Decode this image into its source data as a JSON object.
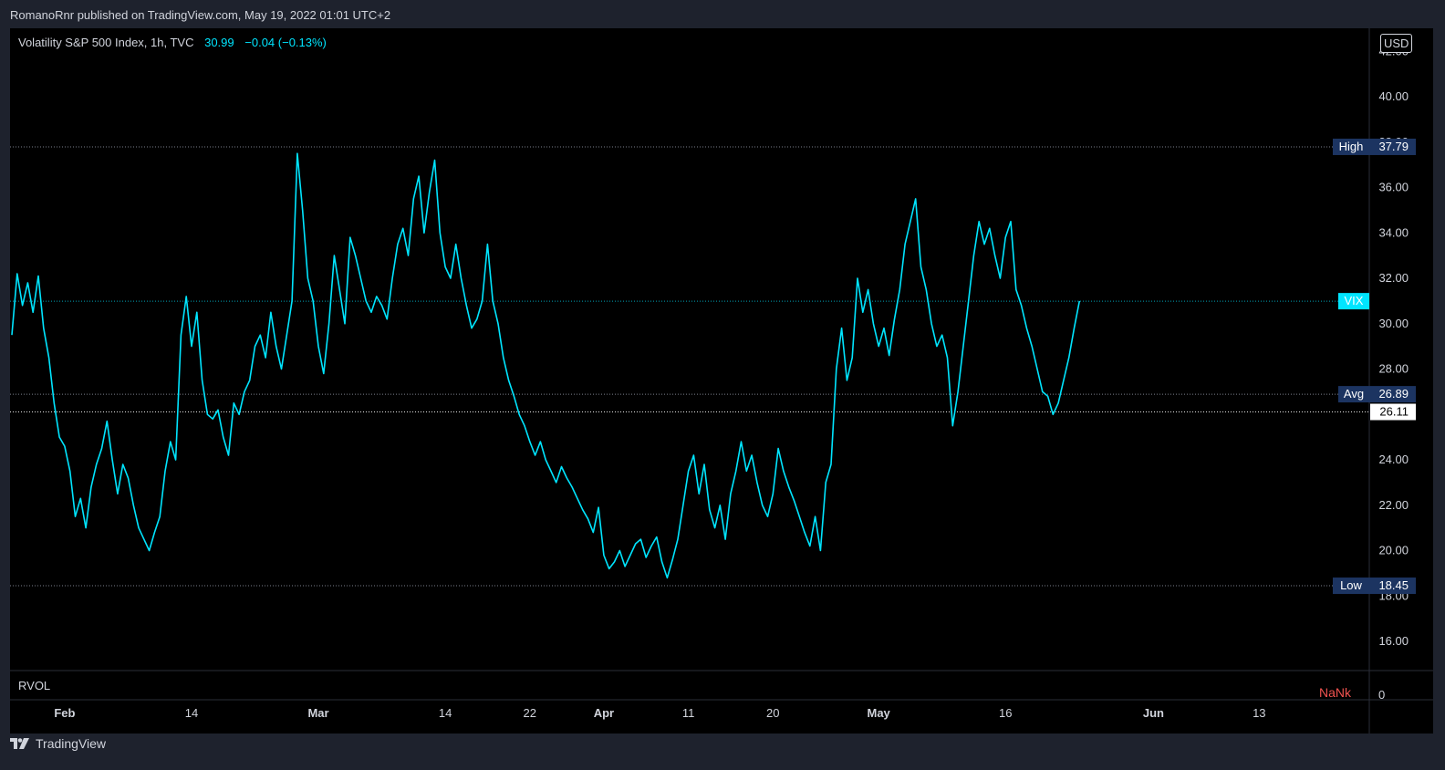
{
  "publisher_text": "RomanoRnr published on TradingView.com, May 19, 2022 01:01 UTC+2",
  "legend": {
    "symbol": "Volatility S&P 500 Index, 1h, TVC",
    "last": "30.99",
    "change": "−0.04 (−0.13%)"
  },
  "currency": "USD",
  "rvol": {
    "label": "RVOL",
    "value": "NaNk",
    "axis_zero": "0"
  },
  "footer": {
    "brand": "TradingView",
    "logo_icon": "tradingview-logo-icon"
  },
  "colors": {
    "series": "#00e5ff",
    "background": "#000000",
    "frame": "#1e222d",
    "hl_badge": "#1c3461",
    "rvol_value": "#f05350"
  },
  "chart_data": {
    "type": "line",
    "title": "Volatility S&P 500 Index, 1h, TVC",
    "ylim": [
      15,
      42
    ],
    "y_ticks": [
      16,
      18,
      20,
      22,
      24,
      26,
      28,
      30,
      32,
      34,
      36,
      38,
      40,
      42
    ],
    "y_tick_labels": [
      "16.00",
      "18.00",
      "20.00",
      "22.00",
      "24.00",
      "26.00",
      "28.00",
      "30.00",
      "32.00",
      "34.00",
      "36.00",
      "38.00",
      "40.00",
      "42.00"
    ],
    "x_ticks": [
      {
        "label": "Feb",
        "bold": true,
        "t": 5
      },
      {
        "label": "14",
        "bold": false,
        "t": 17
      },
      {
        "label": "Mar",
        "bold": true,
        "t": 29
      },
      {
        "label": "14",
        "bold": false,
        "t": 41
      },
      {
        "label": "22",
        "bold": false,
        "t": 49
      },
      {
        "label": "Apr",
        "bold": true,
        "t": 56
      },
      {
        "label": "11",
        "bold": false,
        "t": 64
      },
      {
        "label": "20",
        "bold": false,
        "t": 72
      },
      {
        "label": "May",
        "bold": true,
        "t": 82
      },
      {
        "label": "16",
        "bold": false,
        "t": 94
      },
      {
        "label": "Jun",
        "bold": true,
        "t": 108
      },
      {
        "label": "13",
        "bold": false,
        "t": 118
      }
    ],
    "t_range": [
      0,
      126
    ],
    "series": [
      {
        "values": [
          [
            0,
            29.5
          ],
          [
            0.5,
            32.2
          ],
          [
            1,
            30.8
          ],
          [
            1.5,
            31.8
          ],
          [
            2,
            30.5
          ],
          [
            2.5,
            32.1
          ],
          [
            3,
            29.8
          ],
          [
            3.5,
            28.5
          ],
          [
            4,
            26.5
          ],
          [
            4.5,
            25
          ],
          [
            5,
            24.6
          ],
          [
            5.5,
            23.5
          ],
          [
            6,
            21.5
          ],
          [
            6.5,
            22.3
          ],
          [
            7,
            21
          ],
          [
            7.5,
            22.8
          ],
          [
            8,
            23.8
          ],
          [
            8.5,
            24.5
          ],
          [
            9,
            25.7
          ],
          [
            9.5,
            24
          ],
          [
            10,
            22.5
          ],
          [
            10.5,
            23.8
          ],
          [
            11,
            23.2
          ],
          [
            11.5,
            22
          ],
          [
            12,
            21
          ],
          [
            12.5,
            20.5
          ],
          [
            13,
            20
          ],
          [
            13.5,
            20.8
          ],
          [
            14,
            21.5
          ],
          [
            14.5,
            23.5
          ],
          [
            15,
            24.8
          ],
          [
            15.5,
            24
          ],
          [
            16,
            29.5
          ],
          [
            16.5,
            31.2
          ],
          [
            17,
            29
          ],
          [
            17.5,
            30.5
          ],
          [
            18,
            27.5
          ],
          [
            18.5,
            26
          ],
          [
            19,
            25.8
          ],
          [
            19.5,
            26.2
          ],
          [
            20,
            25
          ],
          [
            20.5,
            24.2
          ],
          [
            21,
            26.5
          ],
          [
            21.5,
            26
          ],
          [
            22,
            27
          ],
          [
            22.5,
            27.5
          ],
          [
            23,
            29
          ],
          [
            23.5,
            29.5
          ],
          [
            24,
            28.5
          ],
          [
            24.5,
            30.5
          ],
          [
            25,
            29
          ],
          [
            25.5,
            28
          ],
          [
            26,
            29.5
          ],
          [
            26.5,
            31
          ],
          [
            27,
            37.5
          ],
          [
            27.5,
            35
          ],
          [
            28,
            32
          ],
          [
            28.5,
            31
          ],
          [
            29,
            29
          ],
          [
            29.5,
            27.8
          ],
          [
            30,
            30
          ],
          [
            30.5,
            33
          ],
          [
            31,
            31.5
          ],
          [
            31.5,
            30
          ],
          [
            32,
            33.8
          ],
          [
            32.5,
            33
          ],
          [
            33,
            32
          ],
          [
            33.5,
            31
          ],
          [
            34,
            30.5
          ],
          [
            34.5,
            31.2
          ],
          [
            35,
            30.8
          ],
          [
            35.5,
            30.2
          ],
          [
            36,
            32
          ],
          [
            36.5,
            33.5
          ],
          [
            37,
            34.2
          ],
          [
            37.5,
            33
          ],
          [
            38,
            35.5
          ],
          [
            38.5,
            36.5
          ],
          [
            39,
            34
          ],
          [
            39.5,
            35.8
          ],
          [
            40,
            37.2
          ],
          [
            40.5,
            34
          ],
          [
            41,
            32.5
          ],
          [
            41.5,
            32
          ],
          [
            42,
            33.5
          ],
          [
            42.5,
            32
          ],
          [
            43,
            30.8
          ],
          [
            43.5,
            29.8
          ],
          [
            44,
            30.2
          ],
          [
            44.5,
            31
          ],
          [
            45,
            33.5
          ],
          [
            45.5,
            31
          ],
          [
            46,
            30
          ],
          [
            46.5,
            28.5
          ],
          [
            47,
            27.5
          ],
          [
            47.5,
            26.8
          ],
          [
            48,
            26
          ],
          [
            48.5,
            25.5
          ],
          [
            49,
            24.8
          ],
          [
            49.5,
            24.2
          ],
          [
            50,
            24.8
          ],
          [
            50.5,
            24
          ],
          [
            51,
            23.5
          ],
          [
            51.5,
            23
          ],
          [
            52,
            23.7
          ],
          [
            52.5,
            23.2
          ],
          [
            53,
            22.8
          ],
          [
            53.5,
            22.3
          ],
          [
            54,
            21.8
          ],
          [
            54.5,
            21.4
          ],
          [
            55,
            20.8
          ],
          [
            55.5,
            21.9
          ],
          [
            56,
            19.8
          ],
          [
            56.5,
            19.2
          ],
          [
            57,
            19.5
          ],
          [
            57.5,
            20
          ],
          [
            58,
            19.3
          ],
          [
            58.5,
            19.8
          ],
          [
            59,
            20.3
          ],
          [
            59.5,
            20.5
          ],
          [
            60,
            19.7
          ],
          [
            60.5,
            20.2
          ],
          [
            61,
            20.6
          ],
          [
            61.5,
            19.5
          ],
          [
            62,
            18.8
          ],
          [
            62.5,
            19.6
          ],
          [
            63,
            20.5
          ],
          [
            63.5,
            22
          ],
          [
            64,
            23.5
          ],
          [
            64.5,
            24.2
          ],
          [
            65,
            22.5
          ],
          [
            65.5,
            23.8
          ],
          [
            66,
            21.8
          ],
          [
            66.5,
            21
          ],
          [
            67,
            22
          ],
          [
            67.5,
            20.5
          ],
          [
            68,
            22.5
          ],
          [
            68.5,
            23.5
          ],
          [
            69,
            24.8
          ],
          [
            69.5,
            23.5
          ],
          [
            70,
            24.2
          ],
          [
            70.5,
            23
          ],
          [
            71,
            22
          ],
          [
            71.5,
            21.5
          ],
          [
            72,
            22.5
          ],
          [
            72.5,
            24.5
          ],
          [
            73,
            23.5
          ],
          [
            73.5,
            22.8
          ],
          [
            74,
            22.2
          ],
          [
            74.5,
            21.5
          ],
          [
            75,
            20.8
          ],
          [
            75.5,
            20.2
          ],
          [
            76,
            21.5
          ],
          [
            76.5,
            20
          ],
          [
            77,
            23
          ],
          [
            77.5,
            23.8
          ],
          [
            78,
            28
          ],
          [
            78.5,
            29.8
          ],
          [
            79,
            27.5
          ],
          [
            79.5,
            28.5
          ],
          [
            80,
            32
          ],
          [
            80.5,
            30.5
          ],
          [
            81,
            31.5
          ],
          [
            81.5,
            30
          ],
          [
            82,
            29
          ],
          [
            82.5,
            29.8
          ],
          [
            83,
            28.6
          ],
          [
            83.5,
            30.2
          ],
          [
            84,
            31.5
          ],
          [
            84.5,
            33.5
          ],
          [
            85,
            34.5
          ],
          [
            85.5,
            35.5
          ],
          [
            86,
            32.5
          ],
          [
            86.5,
            31.5
          ],
          [
            87,
            30
          ],
          [
            87.5,
            29
          ],
          [
            88,
            29.5
          ],
          [
            88.5,
            28.5
          ],
          [
            89,
            25.5
          ],
          [
            89.5,
            27
          ],
          [
            90,
            29
          ],
          [
            90.5,
            31
          ],
          [
            91,
            33
          ],
          [
            91.5,
            34.5
          ],
          [
            92,
            33.5
          ],
          [
            92.5,
            34.2
          ],
          [
            93,
            33
          ],
          [
            93.5,
            32
          ],
          [
            94,
            33.8
          ],
          [
            94.5,
            34.5
          ],
          [
            95,
            31.5
          ],
          [
            95.5,
            30.8
          ],
          [
            96,
            29.8
          ],
          [
            96.5,
            29
          ],
          [
            97,
            28
          ],
          [
            97.5,
            27
          ],
          [
            98,
            26.8
          ],
          [
            98.5,
            26
          ],
          [
            99,
            26.5
          ],
          [
            99.5,
            27.5
          ],
          [
            100,
            28.5
          ],
          [
            100.5,
            29.8
          ],
          [
            101,
            31
          ]
        ]
      }
    ],
    "levels": [
      {
        "name": "High",
        "value": 37.79,
        "label": "37.79"
      },
      {
        "name": "VIX",
        "value": 30.99,
        "label": ""
      },
      {
        "name": "Avg",
        "value": 26.89,
        "label": "26.89"
      },
      {
        "name": "",
        "value": 26.11,
        "label": "26.11"
      },
      {
        "name": "Low",
        "value": 18.45,
        "label": "18.45"
      }
    ]
  }
}
